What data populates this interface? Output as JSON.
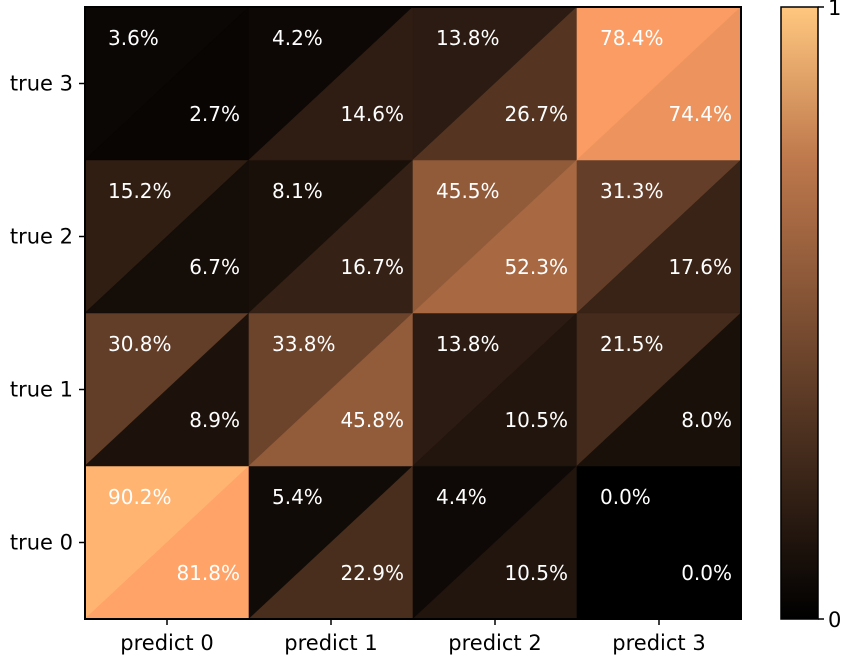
{
  "chart_data": {
    "type": "heatmap",
    "title": "",
    "xlabel": "",
    "ylabel": "",
    "x_categories": [
      "predict 0",
      "predict 1",
      "predict 2",
      "predict 3"
    ],
    "y_categories": [
      "true 0",
      "true 1",
      "true 2",
      "true 3"
    ],
    "colormap": "copper",
    "colorbar": {
      "min": 0,
      "max": 1,
      "tick_labels": [
        "0",
        "1"
      ]
    },
    "cells_note_order": "rows listed from true 0 (bottom) to true 3 (top); each cell split diagonally into upper-left and lower-right triangles",
    "upper_left_values": [
      [
        0.902,
        0.054,
        0.044,
        0.0
      ],
      [
        0.308,
        0.338,
        0.138,
        0.215
      ],
      [
        0.152,
        0.081,
        0.455,
        0.313
      ],
      [
        0.036,
        0.042,
        0.138,
        0.784
      ]
    ],
    "lower_right_values": [
      [
        0.818,
        0.229,
        0.105,
        0.0
      ],
      [
        0.089,
        0.458,
        0.105,
        0.08
      ],
      [
        0.067,
        0.167,
        0.523,
        0.176
      ],
      [
        0.027,
        0.146,
        0.267,
        0.744
      ]
    ],
    "upper_left_labels": [
      [
        "90.2%",
        "5.4%",
        "4.4%",
        "0.0%"
      ],
      [
        "30.8%",
        "33.8%",
        "13.8%",
        "21.5%"
      ],
      [
        "15.2%",
        "8.1%",
        "45.5%",
        "31.3%"
      ],
      [
        "3.6%",
        "4.2%",
        "13.8%",
        "78.4%"
      ]
    ],
    "lower_right_labels": [
      [
        "81.8%",
        "22.9%",
        "10.5%",
        "0.0%"
      ],
      [
        "8.9%",
        "45.8%",
        "10.5%",
        "8.0%"
      ],
      [
        "6.7%",
        "16.7%",
        "52.3%",
        "17.6%"
      ],
      [
        "2.7%",
        "14.6%",
        "26.7%",
        "74.4%"
      ]
    ]
  }
}
